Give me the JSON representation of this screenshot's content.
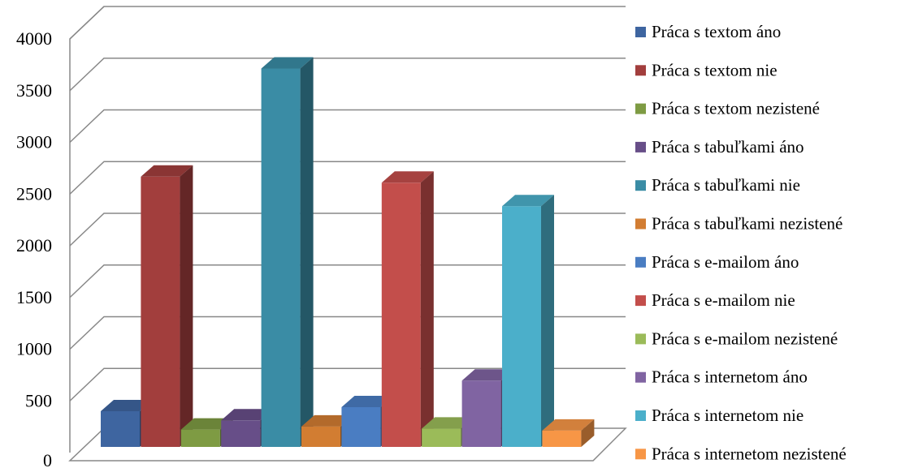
{
  "chart_data": {
    "type": "bar",
    "title": "",
    "xlabel": "",
    "ylabel": "",
    "ylim": [
      0,
      4000
    ],
    "yticks": [
      0,
      500,
      1000,
      1500,
      2000,
      2500,
      3000,
      3500,
      4000
    ],
    "grid": true,
    "legend_position": "right",
    "three_d": true,
    "series": [
      {
        "name": "Práca s textom áno",
        "value": 350,
        "color": "#3E65A0"
      },
      {
        "name": "Práca s textom nie",
        "value": 2650,
        "color": "#A23E3D"
      },
      {
        "name": "Práca s textom nezistené",
        "value": 170,
        "color": "#7E9B43"
      },
      {
        "name": "Práca s tabuľkami áno",
        "value": 260,
        "color": "#674E88"
      },
      {
        "name": "Práca s tabuľkami nie",
        "value": 3710,
        "color": "#3A8CA5"
      },
      {
        "name": "Práca s tabuľkami nezistené",
        "value": 200,
        "color": "#D27D32"
      },
      {
        "name": "Práca s e-mailom áno",
        "value": 390,
        "color": "#4A7DC2"
      },
      {
        "name": "Práca s e-mailom nie",
        "value": 2590,
        "color": "#C34E4B"
      },
      {
        "name": "Práca s e-mailom nezistené",
        "value": 180,
        "color": "#9BBB59"
      },
      {
        "name": "Práca s internetom áno",
        "value": 650,
        "color": "#8064A2"
      },
      {
        "name": "Práca s internetom nie",
        "value": 2360,
        "color": "#4BAFCA"
      },
      {
        "name": "Práca s internetom nezistené",
        "value": 160,
        "color": "#F79646"
      }
    ]
  }
}
